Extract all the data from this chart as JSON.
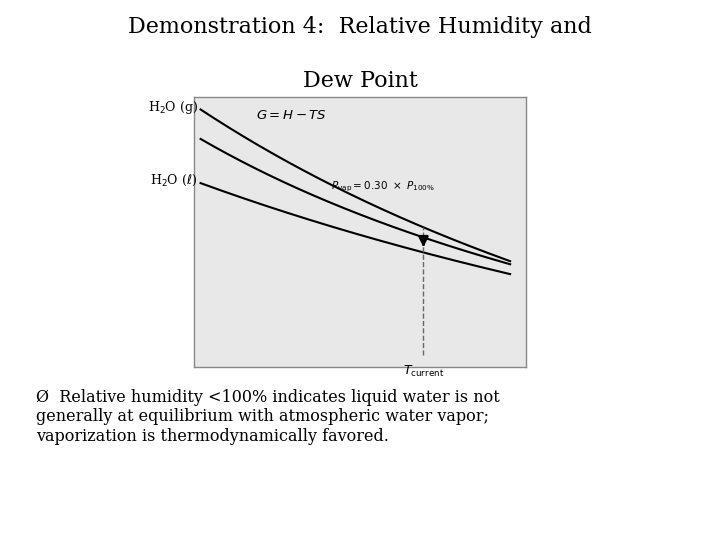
{
  "title_line1": "Demonstration 4:  Relative Humidity and",
  "title_line2": "Dew Point",
  "bg_color": "#ffffff",
  "text_color": "#000000",
  "title_fontsize": 16,
  "body_fontsize": 13,
  "curve_color": "#000000",
  "arrow_color": "#000000",
  "dashed_color": "#666666",
  "box_bg": "#e8e8e8",
  "box_edge": "#999999",
  "bullet_text": "Ø  Relative humidity <100% indicates liquid water is not\ngenerally at equilibrium with atmospheric water vapor;\nvaporization is thermodynamically favored."
}
